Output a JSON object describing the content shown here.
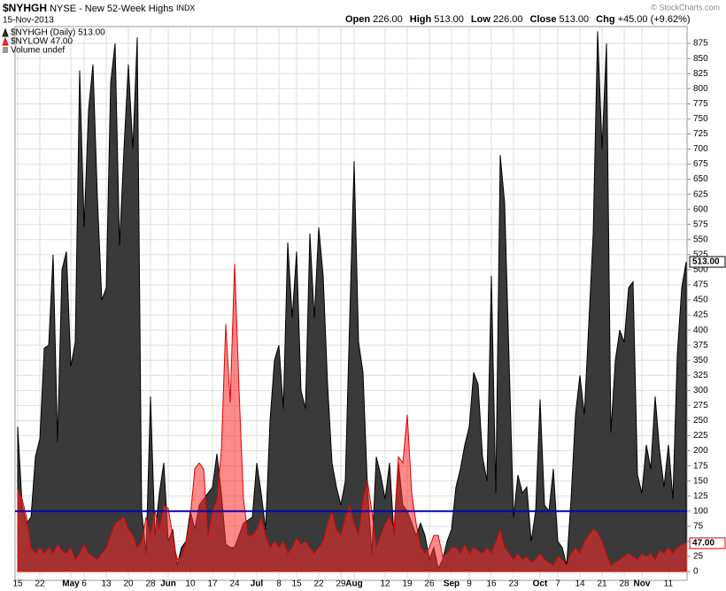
{
  "chart_data": {
    "type": "area",
    "symbol": "$NYHGH",
    "title": "NYSE - New 52-Week Highs",
    "exchange": "INDX",
    "date": "15-Nov-2013",
    "quote": [
      {
        "label": "Open",
        "value": "226.00"
      },
      {
        "label": "High",
        "value": "513.00"
      },
      {
        "label": "Low",
        "value": "226.00"
      },
      {
        "label": "Close",
        "value": "513.00"
      },
      {
        "label": "Chg",
        "value": "+45.00 (+9.62%)"
      }
    ],
    "credit": "© StockCharts.com",
    "volume_label": "Volume undef",
    "categories": [
      "15",
      null,
      null,
      null,
      null,
      "22",
      null,
      null,
      null,
      null,
      null,
      null,
      "May",
      null,
      null,
      "6",
      null,
      null,
      null,
      null,
      "13",
      null,
      null,
      null,
      null,
      "20",
      null,
      null,
      null,
      null,
      "28",
      null,
      null,
      null,
      "Jun",
      null,
      null,
      null,
      null,
      "10",
      null,
      null,
      null,
      null,
      "17",
      null,
      null,
      null,
      null,
      "24",
      null,
      null,
      null,
      null,
      "Jul",
      null,
      null,
      null,
      null,
      "8",
      null,
      null,
      null,
      "15",
      null,
      null,
      null,
      null,
      "22",
      null,
      null,
      null,
      null,
      "29",
      null,
      null,
      "Aug",
      null,
      null,
      null,
      null,
      null,
      null,
      "12",
      null,
      null,
      null,
      null,
      "19",
      null,
      null,
      null,
      null,
      "26",
      null,
      null,
      null,
      null,
      "Sep",
      null,
      null,
      null,
      "9",
      null,
      null,
      null,
      null,
      "16",
      null,
      null,
      null,
      null,
      "23",
      null,
      null,
      null,
      null,
      null,
      "Oct",
      null,
      null,
      null,
      "7",
      null,
      null,
      null,
      null,
      "14",
      null,
      null,
      null,
      null,
      "21",
      null,
      null,
      null,
      null,
      "28",
      null,
      null,
      null,
      "Nov",
      null,
      null,
      null,
      null,
      null,
      "11",
      null,
      null,
      null,
      null
    ],
    "series": [
      {
        "name": "$NYHGH (Daily) 513.00",
        "color": "#3a3a3a",
        "stroke": "#000000",
        "last_label": "513.00",
        "values": [
          240,
          110,
          80,
          90,
          190,
          220,
          370,
          375,
          525,
          215,
          500,
          530,
          340,
          380,
          830,
          570,
          765,
          840,
          620,
          450,
          470,
          810,
          875,
          540,
          700,
          840,
          700,
          885,
          100,
          30,
          290,
          60,
          130,
          180,
          50,
          70,
          10,
          40,
          50,
          100,
          70,
          110,
          120,
          130,
          140,
          195,
          130,
          45,
          40,
          40,
          60,
          80,
          85,
          90,
          180,
          130,
          70,
          250,
          350,
          375,
          270,
          545,
          420,
          530,
          300,
          270,
          560,
          420,
          570,
          490,
          310,
          180,
          140,
          110,
          150,
          420,
          680,
          380,
          330,
          140,
          30,
          190,
          160,
          120,
          180,
          60,
          180,
          110,
          100,
          80,
          60,
          80,
          60,
          20,
          40,
          5,
          20,
          50,
          70,
          140,
          170,
          210,
          240,
          330,
          310,
          190,
          150,
          490,
          130,
          690,
          610,
          350,
          90,
          160,
          130,
          140,
          50,
          100,
          285,
          110,
          100,
          170,
          50,
          40,
          10,
          120,
          260,
          325,
          260,
          410,
          560,
          895,
          700,
          875,
          230,
          350,
          400,
          380,
          470,
          480,
          160,
          130,
          210,
          170,
          290,
          200,
          140,
          210,
          120,
          360,
          470,
          513
        ]
      },
      {
        "name": "$NYLOW  47.00",
        "color": "#ff2a2a",
        "stroke": "#e00000",
        "last_label": "47.00",
        "values": [
          135,
          120,
          90,
          40,
          30,
          40,
          30,
          40,
          30,
          45,
          35,
          30,
          40,
          20,
          30,
          45,
          30,
          25,
          20,
          30,
          40,
          60,
          80,
          85,
          90,
          70,
          60,
          40,
          50,
          90,
          60,
          100,
          70,
          110,
          105,
          60,
          20,
          25,
          50,
          90,
          170,
          180,
          170,
          60,
          100,
          120,
          200,
          410,
          280,
          510,
          300,
          120,
          60,
          60,
          70,
          90,
          60,
          40,
          50,
          40,
          50,
          30,
          40,
          55,
          45,
          50,
          40,
          30,
          40,
          50,
          80,
          100,
          70,
          60,
          90,
          110,
          80,
          60,
          120,
          150,
          100,
          40,
          60,
          80,
          90,
          70,
          190,
          180,
          260,
          130,
          80,
          40,
          30,
          40,
          60,
          60,
          25,
          30,
          40,
          40,
          30,
          45,
          30,
          40,
          35,
          30,
          40,
          30,
          50,
          70,
          40,
          30,
          20,
          30,
          20,
          25,
          15,
          20,
          30,
          20,
          15,
          10,
          25,
          20,
          10,
          30,
          40,
          30,
          50,
          60,
          70,
          65,
          50,
          30,
          10,
          15,
          20,
          25,
          30,
          25,
          20,
          30,
          25,
          30,
          20,
          35,
          30,
          40,
          30,
          40,
          45,
          47
        ]
      }
    ],
    "reference_line": {
      "value": 100,
      "color": "#0000cc"
    },
    "ylim": [
      0,
      900
    ],
    "yticks": [
      0,
      25,
      50,
      75,
      100,
      125,
      150,
      175,
      200,
      225,
      250,
      275,
      300,
      325,
      350,
      375,
      400,
      425,
      450,
      475,
      500,
      525,
      550,
      575,
      600,
      625,
      650,
      675,
      700,
      725,
      750,
      775,
      800,
      825,
      850,
      875
    ],
    "grid": true,
    "legend": "top-left"
  }
}
